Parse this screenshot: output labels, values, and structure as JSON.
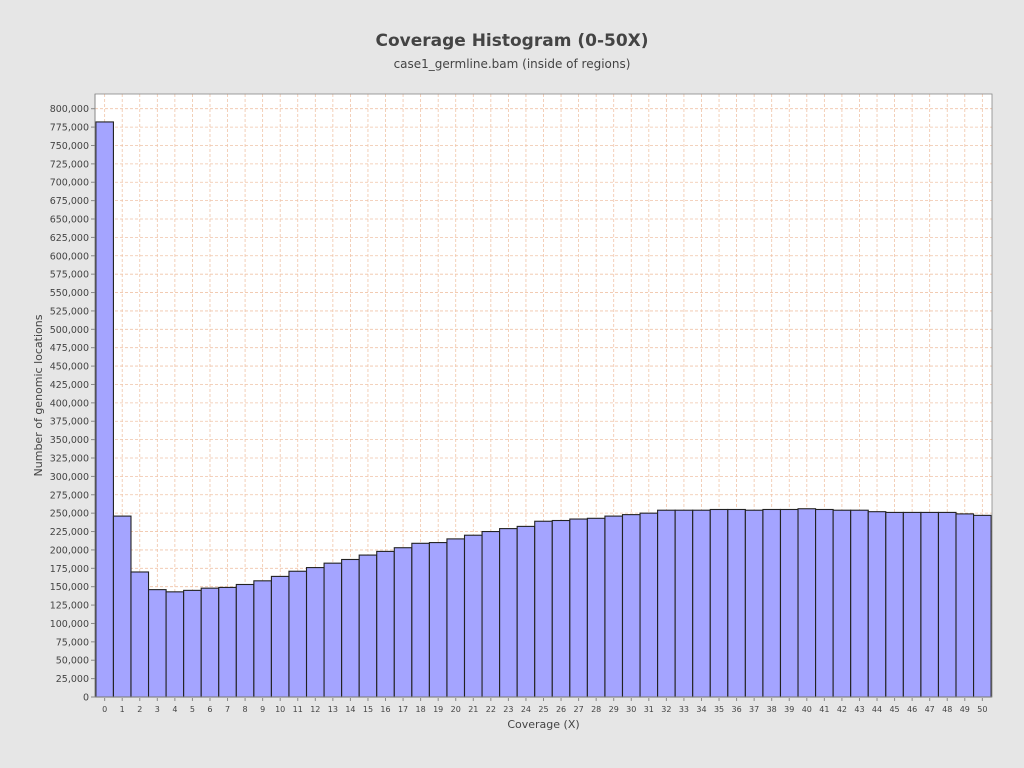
{
  "chart_data": {
    "type": "bar",
    "title": "Coverage Histogram (0-50X)",
    "subtitle": "case1_germline.bam (inside of regions)",
    "xlabel": "Coverage (X)",
    "ylabel": "Number of genomic locations",
    "ylim": [
      0,
      820000
    ],
    "ytick_step": 25000,
    "grid": true,
    "legend": "none",
    "categories": [
      "0",
      "1",
      "2",
      "3",
      "4",
      "5",
      "6",
      "7",
      "8",
      "9",
      "10",
      "11",
      "12",
      "13",
      "14",
      "15",
      "16",
      "17",
      "18",
      "19",
      "20",
      "21",
      "22",
      "23",
      "24",
      "25",
      "26",
      "27",
      "28",
      "29",
      "30",
      "31",
      "32",
      "33",
      "34",
      "35",
      "36",
      "37",
      "38",
      "39",
      "40",
      "41",
      "42",
      "43",
      "44",
      "45",
      "46",
      "47",
      "48",
      "49",
      "50"
    ],
    "values": [
      782000,
      246000,
      170000,
      146000,
      143000,
      145000,
      148000,
      149000,
      153000,
      158000,
      164000,
      171000,
      176000,
      182000,
      187000,
      193000,
      198000,
      203000,
      209000,
      210000,
      215000,
      220000,
      225000,
      229000,
      232000,
      239000,
      240000,
      242000,
      243000,
      246000,
      248000,
      250000,
      254000,
      254000,
      254000,
      255000,
      255000,
      254000,
      255000,
      255000,
      256000,
      255000,
      254000,
      254000,
      252000,
      251000,
      251000,
      251000,
      251000,
      249000,
      247000
    ],
    "colors": {
      "background": "#e6e6e6",
      "plot_background": "#ffffff",
      "bar_fill": "#a4a4ff",
      "bar_stroke": "#222222",
      "grid": "#f0c4a8"
    }
  }
}
